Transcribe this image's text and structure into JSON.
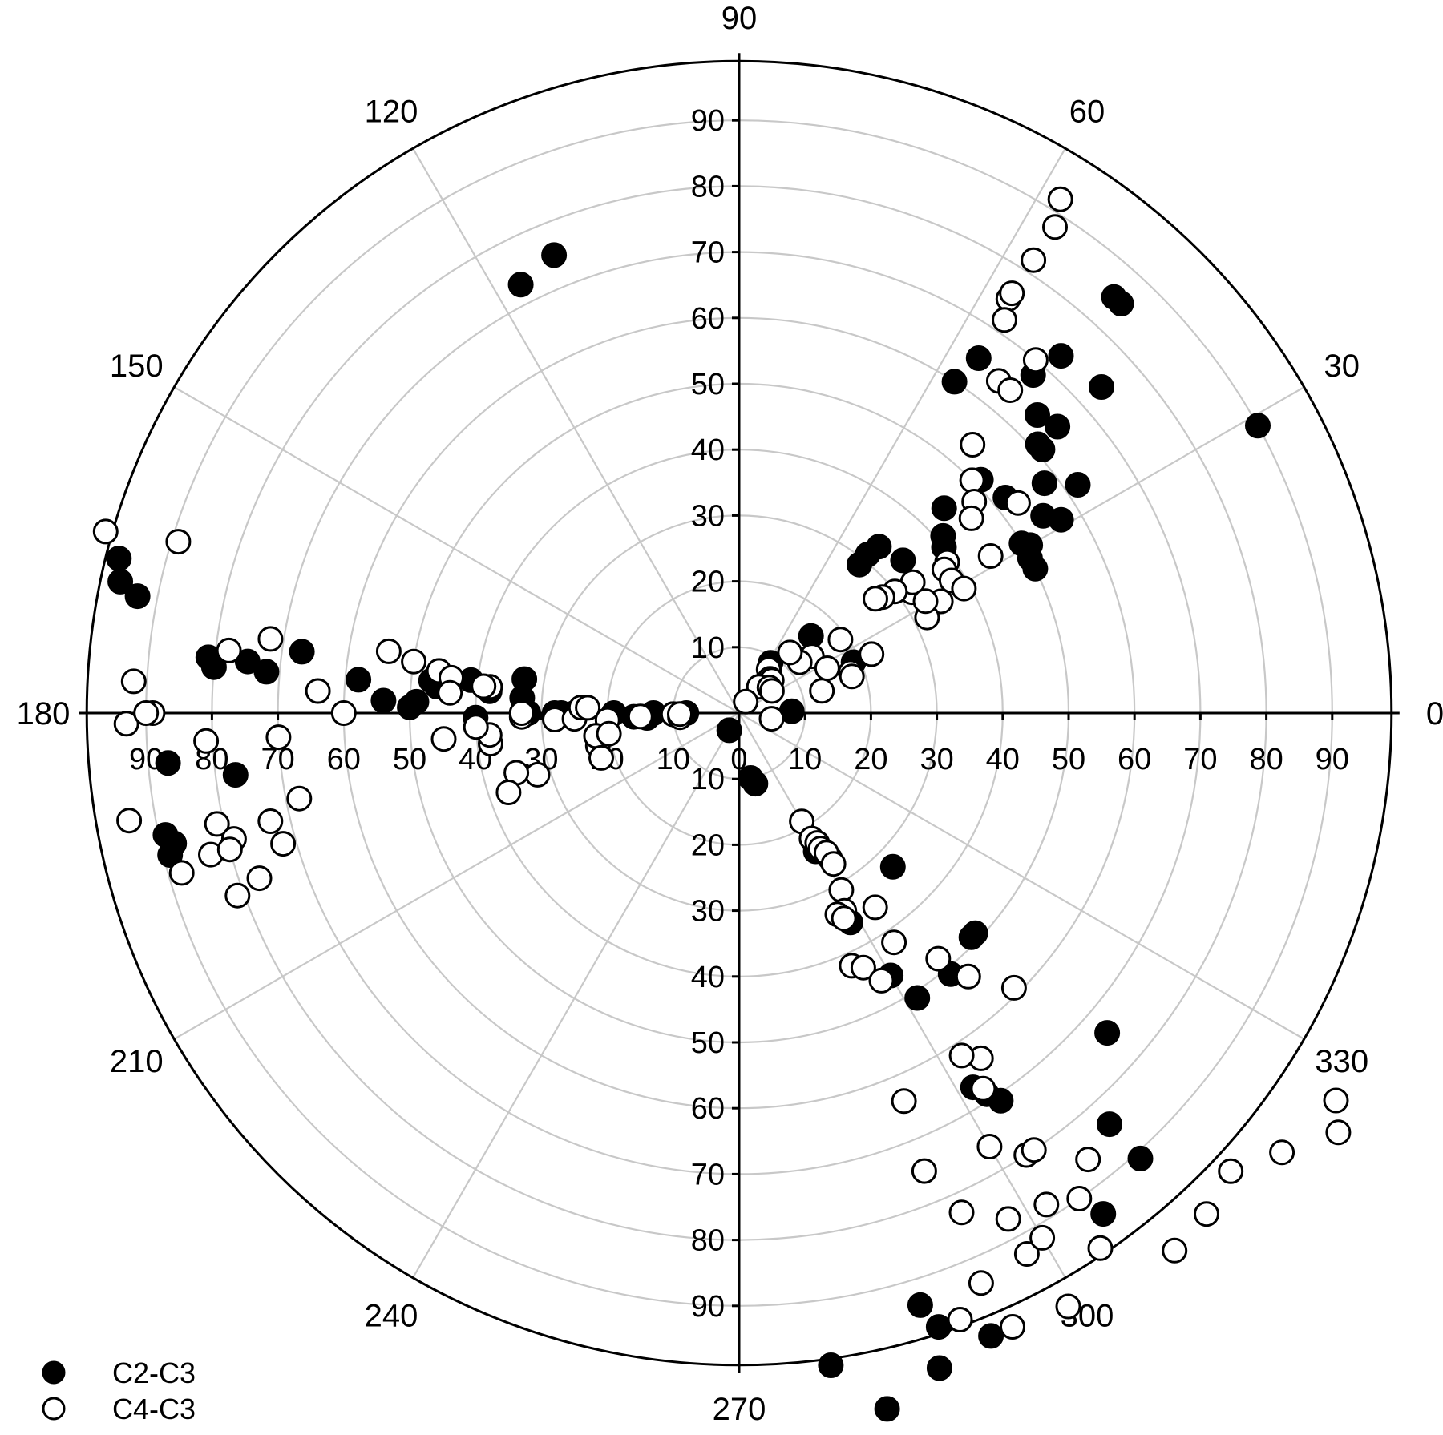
{
  "chart_data": {
    "type": "scatter",
    "coordinate_system": "polar",
    "angle_unit": "degrees",
    "angular_ticks": [
      0,
      30,
      60,
      90,
      120,
      150,
      180,
      210,
      240,
      270,
      300,
      330
    ],
    "radial_ticks": [
      10,
      20,
      30,
      40,
      50,
      60,
      70,
      80,
      90
    ],
    "radial_zero_label": "0",
    "rlim": [
      0,
      99
    ],
    "grid": true,
    "legend_position": "bottom-left",
    "series": [
      {
        "name": "C2-C3",
        "marker": "filled-circle",
        "color": "#000000",
        "points": [
          [
            29,
            90
          ],
          [
            47,
            85
          ],
          [
            48,
            85
          ],
          [
            42,
            74
          ],
          [
            48,
            73
          ],
          [
            49,
            68
          ],
          [
            56,
            65
          ],
          [
            42,
            65
          ],
          [
            45,
            64
          ],
          [
            57,
            60
          ],
          [
            34,
            62
          ],
          [
            31,
            57
          ],
          [
            37,
            58
          ],
          [
            33,
            55
          ],
          [
            30,
            51
          ],
          [
            31,
            50
          ],
          [
            44,
            51
          ],
          [
            41,
            61
          ],
          [
            42,
            61
          ],
          [
            28,
            50
          ],
          [
            26,
            50
          ],
          [
            39,
            52
          ],
          [
            45,
            44
          ],
          [
            41,
            41
          ],
          [
            39,
            40
          ],
          [
            43,
            34
          ],
          [
            50,
            33
          ],
          [
            51,
            31
          ],
          [
            51,
            29
          ],
          [
            24,
            19
          ],
          [
            47,
            16
          ],
          [
            58,
            9
          ],
          [
            117,
            73
          ],
          [
            112,
            75
          ],
          [
            175,
            46
          ],
          [
            174,
            47
          ],
          [
            171,
            33
          ],
          [
            176,
            33
          ],
          [
            175,
            38
          ],
          [
            173,
            41
          ],
          [
            172,
            67
          ],
          [
            168,
            96
          ],
          [
            169,
            93
          ],
          [
            166,
            97
          ],
          [
            174,
            75
          ],
          [
            175,
            72
          ],
          [
            175,
            58
          ],
          [
            178,
            54
          ],
          [
            179,
            50
          ],
          [
            178,
            49
          ],
          [
            181,
            40
          ],
          [
            180,
            32
          ],
          [
            180,
            28
          ],
          [
            180,
            27
          ],
          [
            180,
            25
          ],
          [
            180,
            19
          ],
          [
            182,
            16
          ],
          [
            183,
            14
          ],
          [
            180,
            13
          ],
          [
            181,
            10
          ],
          [
            180,
            8
          ],
          [
            2,
            8
          ],
          [
            240,
            3
          ],
          [
            283,
            11
          ],
          [
            280,
            10
          ],
          [
            300,
            22
          ],
          [
            299,
            24
          ],
          [
            302,
            26
          ],
          [
            298,
            36
          ],
          [
            315,
            33
          ],
          [
            300,
            46
          ],
          [
            316,
            49
          ],
          [
            317,
            49
          ],
          [
            309,
            51
          ],
          [
            302,
            51
          ],
          [
            302,
            67
          ],
          [
            303,
            69
          ],
          [
            304,
            71
          ],
          [
            319,
            74
          ],
          [
            312,
            84
          ],
          [
            312,
            91
          ],
          [
            306,
            94
          ],
          [
            292,
            102
          ],
          [
            287,
            104
          ],
          [
            288,
            98
          ],
          [
            287,
            94
          ],
          [
            278,
            100
          ],
          [
            282,
            108
          ],
          [
            185,
            87
          ],
          [
            187,
            77
          ],
          [
            194,
            89
          ],
          [
            192,
            89
          ],
          [
            193,
            88
          ],
          [
            175,
            80
          ],
          [
            174,
            81
          ]
        ]
      },
      {
        "name": "C4-C3",
        "marker": "hollow-circle",
        "color": "#ffffff",
        "points": [
          [
            58,
            92
          ],
          [
            57,
            88
          ],
          [
            57,
            82
          ],
          [
            57,
            75
          ],
          [
            57,
            76
          ],
          [
            56,
            72
          ],
          [
            52,
            64
          ],
          [
            50,
            70
          ],
          [
            50,
            64
          ],
          [
            49,
            54
          ],
          [
            45,
            50
          ],
          [
            42,
            48
          ],
          [
            40,
            46
          ],
          [
            36,
            39
          ],
          [
            35,
            32
          ],
          [
            37,
            33
          ],
          [
            35,
            38
          ],
          [
            32,
            38
          ],
          [
            29,
            39
          ],
          [
            29,
            35
          ],
          [
            38,
            30
          ],
          [
            39,
            28
          ],
          [
            40,
            27
          ],
          [
            36,
            19
          ],
          [
            38,
            14
          ],
          [
            40,
            12
          ],
          [
            50,
            12
          ],
          [
            55,
            8
          ],
          [
            56,
            8
          ],
          [
            48,
            7
          ],
          [
            45,
            7
          ],
          [
            53,
            5
          ],
          [
            40,
            6
          ],
          [
            34,
            6
          ],
          [
            60,
            2
          ],
          [
            15,
            13
          ],
          [
            27,
            15
          ],
          [
            24,
            22
          ],
          [
            20,
            18
          ],
          [
            18,
            18
          ],
          [
            32,
            45
          ],
          [
            37,
            53
          ],
          [
            27,
            32
          ],
          [
            31,
            33
          ],
          [
            163,
            89
          ],
          [
            164,
            100
          ],
          [
            173,
            78
          ],
          [
            171,
            72
          ],
          [
            170,
            54
          ],
          [
            171,
            50
          ],
          [
            172,
            46
          ],
          [
            173,
            44
          ],
          [
            174,
            38
          ],
          [
            174,
            39
          ],
          [
            176,
            44
          ],
          [
            177,
            64
          ],
          [
            180,
            89
          ],
          [
            181,
            93
          ],
          [
            180,
            90
          ],
          [
            177,
            92
          ],
          [
            183,
            81
          ],
          [
            180,
            60
          ],
          [
            183,
            70
          ],
          [
            185,
            45
          ],
          [
            187,
            38
          ],
          [
            185,
            38
          ],
          [
            183,
            40
          ],
          [
            181,
            33
          ],
          [
            180,
            33
          ],
          [
            182,
            28
          ],
          [
            182,
            25
          ],
          [
            178,
            24
          ],
          [
            178,
            23
          ],
          [
            183,
            20
          ],
          [
            181,
            10
          ],
          [
            182,
            15
          ],
          [
            184,
            9
          ],
          [
            181,
            9
          ],
          [
            190,
            94
          ],
          [
            191,
            68
          ],
          [
            193,
            73
          ],
          [
            192,
            81
          ],
          [
            194,
            79
          ],
          [
            195,
            83
          ],
          [
            196,
            88
          ],
          [
            196,
            72
          ],
          [
            199,
            77
          ],
          [
            200,
            81
          ],
          [
            195,
            80
          ],
          [
            197,
            32
          ],
          [
            195,
            35
          ],
          [
            199,
            37
          ],
          [
            193,
            22
          ],
          [
            189,
            22
          ],
          [
            189,
            20
          ],
          [
            198,
            22
          ],
          [
            350,
            5
          ],
          [
            300,
            19
          ],
          [
            300,
            22
          ],
          [
            301,
            23
          ],
          [
            301,
            24
          ],
          [
            302,
            25
          ],
          [
            302,
            27
          ],
          [
            300,
            31
          ],
          [
            298,
            34
          ],
          [
            296,
            34
          ],
          [
            297,
            35
          ],
          [
            305,
            36
          ],
          [
            294,
            42
          ],
          [
            296,
            43
          ],
          [
            298,
            46
          ],
          [
            304,
            42
          ],
          [
            309,
            48
          ],
          [
            311,
            53
          ],
          [
            315,
            59
          ],
          [
            305,
            64
          ],
          [
            303,
            68
          ],
          [
            303,
            62
          ],
          [
            293,
            64
          ],
          [
            292,
            75
          ],
          [
            294,
            83
          ],
          [
            293,
            94
          ],
          [
            290,
            98
          ],
          [
            294,
            102
          ],
          [
            299,
            103
          ],
          [
            298,
            87
          ],
          [
            303,
            80
          ],
          [
            300,
            76
          ],
          [
            304,
            80
          ],
          [
            304,
            98
          ],
          [
            309,
            105
          ],
          [
            313,
            104
          ],
          [
            317,
            102
          ],
          [
            321,
            106
          ],
          [
            327,
            108
          ],
          [
            325,
            111
          ],
          [
            298,
            93
          ],
          [
            302,
            88
          ],
          [
            305,
            90
          ],
          [
            300,
            92
          ],
          [
            308,
            86
          ]
        ]
      }
    ]
  }
}
